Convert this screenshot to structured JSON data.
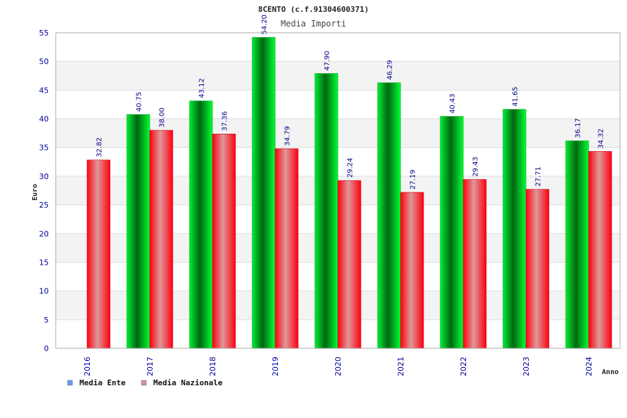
{
  "chart_data": {
    "type": "bar",
    "title": "8CENTO (c.f.91304600371)",
    "subtitle": "Media Importi",
    "xlabel": "Anno",
    "ylabel": "Euro",
    "ylim": [
      0,
      55
    ],
    "yticks": [
      0,
      5,
      10,
      15,
      20,
      25,
      30,
      35,
      40,
      45,
      50,
      55
    ],
    "categories": [
      "2016",
      "2017",
      "2018",
      "2019",
      "2020",
      "2021",
      "2022",
      "2023",
      "2024"
    ],
    "series": [
      {
        "name": "Media Ente",
        "values": [
          null,
          40.75,
          43.12,
          54.2,
          47.9,
          46.29,
          40.43,
          41.65,
          36.17
        ],
        "labels": [
          "",
          "40.75",
          "43.12",
          "54.20",
          "47.90",
          "46.29",
          "40.43",
          "41.65",
          "36.17"
        ],
        "color": "#00cc22",
        "legend_color": "#6699ee"
      },
      {
        "name": "Media Nazionale",
        "values": [
          32.82,
          38.0,
          37.36,
          34.79,
          29.24,
          27.19,
          29.43,
          27.71,
          34.32
        ],
        "labels": [
          "32.82",
          "38.00",
          "37.36",
          "34.79",
          "29.24",
          "27.19",
          "29.43",
          "27.71",
          "34.32"
        ],
        "color": "#ee1122",
        "legend_color": "#dd88bb"
      }
    ],
    "grid": true,
    "legend": "bottom-left",
    "colors": {
      "axis_text": "#000099",
      "label_text": "#000088",
      "grid_band": "#f3f3f3",
      "grid_line": "#dddddd",
      "axis_line": "#aaaaaa"
    }
  }
}
